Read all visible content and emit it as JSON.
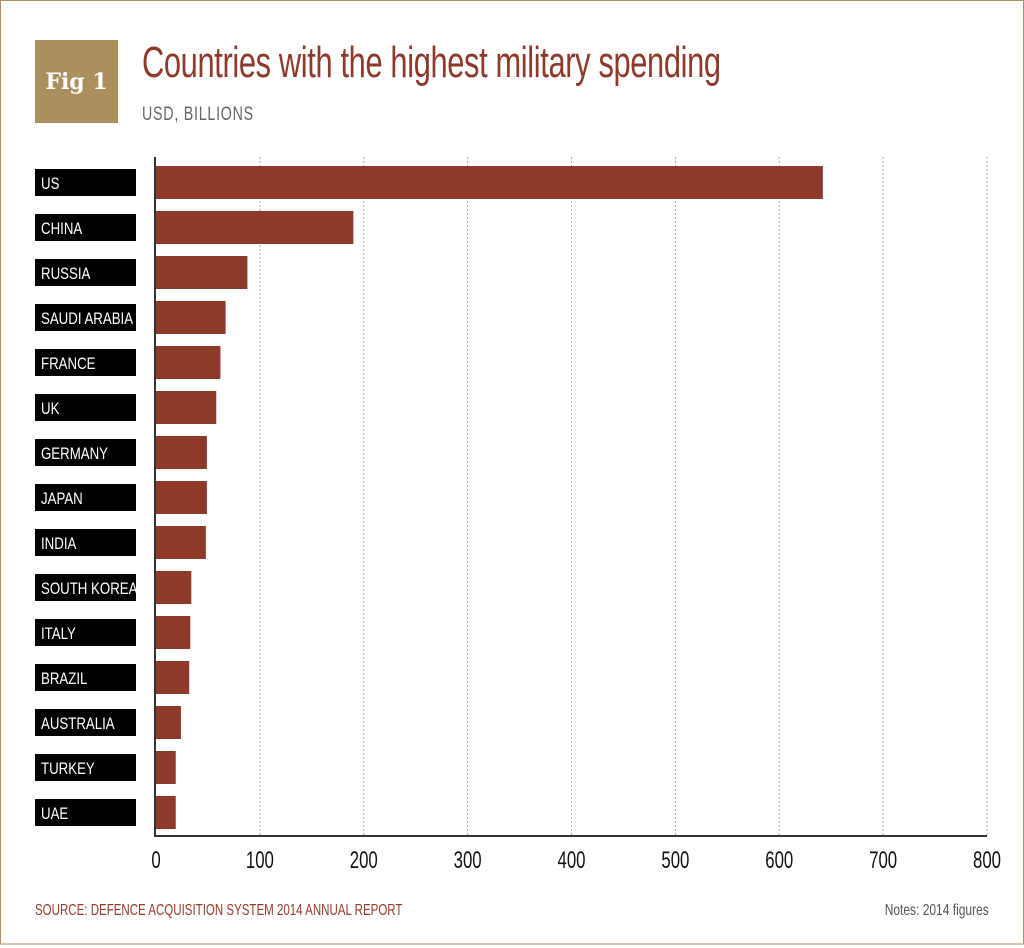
{
  "badge": "Fig 1",
  "colors": {
    "bar": "#8e3a2a",
    "badge": "#ab8f5e",
    "label_bg": "#000000",
    "frame": "#b09060"
  },
  "chart_data": {
    "type": "bar",
    "orientation": "horizontal",
    "title": "Countries with the highest military spending",
    "subtitle": "USD, BILLIONS",
    "categories": [
      "US",
      "CHINA",
      "RUSSIA",
      "SAUDI ARABIA",
      "FRANCE",
      "UK",
      "GERMANY",
      "JAPAN",
      "INDIA",
      "SOUTH KOREA",
      "ITALY",
      "BRAZIL",
      "AUSTRALIA",
      "TURKEY",
      "UAE"
    ],
    "values": [
      642,
      190,
      88,
      67,
      62,
      58,
      49,
      49,
      48,
      34,
      33,
      32,
      24,
      19,
      19
    ],
    "xlim": [
      0,
      800
    ],
    "xticks": [
      "0",
      "100",
      "200",
      "300",
      "400",
      "500",
      "600",
      "700",
      "800"
    ],
    "grid": "vertical dotted",
    "xlabel": "",
    "ylabel": ""
  },
  "footer": {
    "source": "SOURCE: DEFENCE ACQUISITION SYSTEM 2014 ANNUAL REPORT",
    "notes": "Notes: 2014 figures"
  }
}
